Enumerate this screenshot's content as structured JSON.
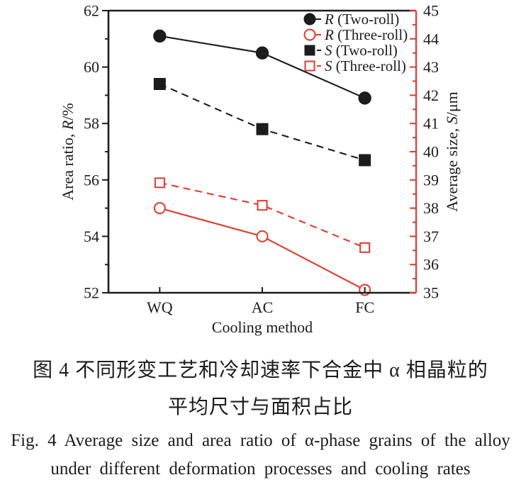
{
  "colors": {
    "black": "#1c1c1c",
    "red": "#e23a2a",
    "background": "#ffffff"
  },
  "figure": {
    "caption_zh_line1": "图 4  不同形变工艺和冷却速率下合金中 α 相晶粒的",
    "caption_zh_line2": "平均尺寸与面积占比",
    "caption_en_line1": "Fig. 4  Average size and area ratio of α-phase grains of the alloy",
    "caption_en_line2": "under different deformation processes and cooling rates"
  },
  "chart_data": {
    "type": "line",
    "categories": [
      "WQ",
      "AC",
      "FC"
    ],
    "xlabel": "Cooling method",
    "left_axis": {
      "label_parts": [
        {
          "t": "Area ratio, "
        },
        {
          "t": "R",
          "i": true
        },
        {
          "t": "/%"
        }
      ],
      "min": 52,
      "max": 62,
      "major_step": 2,
      "minor_step": 1,
      "tick_labels": [
        "52",
        "54",
        "56",
        "58",
        "60",
        "62"
      ]
    },
    "right_axis": {
      "label_parts": [
        {
          "t": "Average size, "
        },
        {
          "t": "S",
          "i": true
        },
        {
          "t": "/μm"
        }
      ],
      "min": 35,
      "max": 45,
      "major_step": 1,
      "minor_step": 0.5,
      "tick_labels": [
        "35",
        "36",
        "37",
        "38",
        "39",
        "40",
        "41",
        "42",
        "43",
        "44",
        "45"
      ]
    },
    "grid": false,
    "legend_position": "top-right",
    "series": [
      {
        "name": "R (Two-roll)",
        "axis": "left",
        "color": "black",
        "line": "solid",
        "marker": "circle",
        "fill": "filled",
        "values": [
          61.1,
          60.5,
          58.9
        ]
      },
      {
        "name": "R (Three-roll)",
        "axis": "left",
        "color": "red",
        "line": "solid",
        "marker": "circle",
        "fill": "open",
        "values": [
          55.0,
          54.0,
          52.1
        ]
      },
      {
        "name": "S (Two-roll)",
        "axis": "right",
        "color": "black",
        "line": "dashed",
        "marker": "square",
        "fill": "filled",
        "values": [
          42.4,
          40.8,
          39.7
        ]
      },
      {
        "name": "S (Three-roll)",
        "axis": "right",
        "color": "red",
        "line": "dashed",
        "marker": "square",
        "fill": "open",
        "values": [
          38.9,
          38.1,
          36.6
        ]
      }
    ]
  }
}
